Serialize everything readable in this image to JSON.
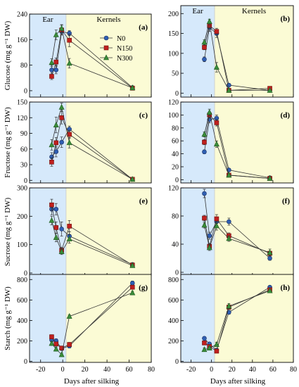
{
  "figure": {
    "xlabel_left": "Days after silking",
    "xlabel_right": "Days after silking",
    "region_labels": [
      "Ear",
      "Kernels"
    ],
    "colors": {
      "ear_bg": "#d6e9fb",
      "kernel_bg": "#fbfbd5",
      "N0": "#2f5fb3",
      "N150": "#c0201e",
      "N300": "#3a8c3a"
    }
  },
  "chart_data": [
    {
      "type": "line",
      "panel": "(a)",
      "ylabel": "Glucose (mg g⁻¹ DW)",
      "ylim": [
        -20,
        240
      ],
      "yticks": [
        0,
        80,
        160,
        240
      ],
      "xlim": [
        -30,
        80
      ],
      "xticks": [],
      "legend": {
        "placement": "top-right",
        "entries": [
          "N0",
          "N150",
          "N300"
        ]
      },
      "series": [
        {
          "name": "N0",
          "x": [
            -10,
            -6,
            -1,
            6,
            63
          ],
          "y": [
            65,
            65,
            185,
            180,
            10
          ],
          "err": [
            15,
            12,
            10,
            8,
            2
          ]
        },
        {
          "name": "N150",
          "x": [
            -10,
            -6,
            -1,
            6,
            63
          ],
          "y": [
            45,
            90,
            190,
            158,
            8
          ],
          "err": [
            10,
            12,
            15,
            20,
            2
          ]
        },
        {
          "name": "N300",
          "x": [
            -10,
            -6,
            -1,
            6,
            63
          ],
          "y": [
            88,
            175,
            195,
            86,
            9
          ],
          "err": [
            12,
            15,
            12,
            15,
            2
          ]
        }
      ]
    },
    {
      "type": "line",
      "panel": "(b)",
      "ylabel": "",
      "ylim": [
        -10,
        220
      ],
      "yticks": [
        0,
        50,
        100,
        150,
        200
      ],
      "xlim": [
        -30,
        80
      ],
      "xticks": [],
      "series": [
        {
          "name": "N0",
          "x": [
            -7,
            -2,
            5,
            17,
            57
          ],
          "y": [
            85,
            165,
            150,
            20,
            7
          ],
          "err": [
            6,
            10,
            10,
            2,
            2
          ]
        },
        {
          "name": "N150",
          "x": [
            -7,
            -2,
            5,
            17,
            57
          ],
          "y": [
            115,
            170,
            155,
            7,
            12
          ],
          "err": [
            6,
            8,
            8,
            2,
            2
          ]
        },
        {
          "name": "N300",
          "x": [
            -7,
            -2,
            5,
            17,
            57
          ],
          "y": [
            128,
            180,
            65,
            7,
            7
          ],
          "err": [
            6,
            6,
            12,
            2,
            2
          ]
        }
      ]
    },
    {
      "type": "line",
      "panel": "(c)",
      "ylabel": "Fructose (mg g⁻¹ DW)",
      "ylim": [
        -5,
        150
      ],
      "yticks": [
        0,
        30,
        60,
        90,
        120,
        150
      ],
      "xlim": [
        -30,
        80
      ],
      "xticks": [],
      "series": [
        {
          "name": "N0",
          "x": [
            -10,
            -6,
            -1,
            6,
            63
          ],
          "y": [
            45,
            55,
            73,
            98,
            2
          ],
          "err": [
            8,
            10,
            10,
            6,
            1
          ]
        },
        {
          "name": "N150",
          "x": [
            -10,
            -6,
            -1,
            6,
            63
          ],
          "y": [
            35,
            72,
            120,
            88,
            2
          ],
          "err": [
            8,
            10,
            12,
            8,
            1
          ]
        },
        {
          "name": "N300",
          "x": [
            -10,
            -6,
            -1,
            6,
            63
          ],
          "y": [
            68,
            106,
            140,
            72,
            2
          ],
          "err": [
            10,
            15,
            8,
            10,
            1
          ]
        }
      ]
    },
    {
      "type": "line",
      "panel": "(d)",
      "ylabel": "",
      "ylim": [
        -5,
        120
      ],
      "yticks": [
        0,
        20,
        40,
        60,
        80,
        100,
        120
      ],
      "xlim": [
        -30,
        80
      ],
      "xticks": [],
      "series": [
        {
          "name": "N0",
          "x": [
            -7,
            -2,
            5,
            17,
            57
          ],
          "y": [
            43,
            93,
            95,
            15,
            3
          ],
          "err": [
            3,
            5,
            5,
            2,
            1
          ]
        },
        {
          "name": "N150",
          "x": [
            -7,
            -2,
            5,
            17,
            57
          ],
          "y": [
            58,
            100,
            88,
            7,
            2
          ],
          "err": [
            4,
            5,
            5,
            2,
            1
          ]
        },
        {
          "name": "N300",
          "x": [
            -7,
            -2,
            5,
            17,
            57
          ],
          "y": [
            70,
            104,
            55,
            7,
            2
          ],
          "err": [
            4,
            5,
            5,
            2,
            1
          ]
        }
      ]
    },
    {
      "type": "line",
      "panel": "(e)",
      "ylabel": "Sucrose (mg g⁻¹ DW)",
      "ylim": [
        -10,
        300
      ],
      "yticks": [
        0,
        100,
        200,
        300
      ],
      "xlim": [
        -30,
        80
      ],
      "xticks": [],
      "series": [
        {
          "name": "N0",
          "x": [
            -10,
            -6,
            -1,
            6,
            63
          ],
          "y": [
            225,
            225,
            155,
            130,
            30
          ],
          "err": [
            20,
            20,
            25,
            15,
            5
          ]
        },
        {
          "name": "N150",
          "x": [
            -10,
            -6,
            -1,
            6,
            63
          ],
          "y": [
            240,
            160,
            80,
            165,
            28
          ],
          "err": [
            20,
            20,
            10,
            20,
            5
          ]
        },
        {
          "name": "N300",
          "x": [
            -10,
            -6,
            -1,
            6,
            63
          ],
          "y": [
            185,
            125,
            75,
            120,
            26
          ],
          "err": [
            15,
            15,
            10,
            15,
            5
          ]
        }
      ]
    },
    {
      "type": "line",
      "panel": "(f)",
      "ylabel": "",
      "ylim": [
        -5,
        120
      ],
      "yticks": [
        0,
        40,
        80,
        120
      ],
      "xlim": [
        -30,
        80
      ],
      "xticks": [],
      "series": [
        {
          "name": "N0",
          "x": [
            -7,
            -2,
            5,
            17,
            57
          ],
          "y": [
            112,
            52,
            72,
            72,
            20
          ],
          "err": [
            6,
            5,
            6,
            5,
            3
          ]
        },
        {
          "name": "N150",
          "x": [
            -7,
            -2,
            5,
            17,
            57
          ],
          "y": [
            77,
            37,
            76,
            52,
            27
          ],
          "err": [
            4,
            4,
            6,
            4,
            3
          ]
        },
        {
          "name": "N300",
          "x": [
            -7,
            -2,
            5,
            17,
            57
          ],
          "y": [
            67,
            35,
            66,
            48,
            28
          ],
          "err": [
            4,
            4,
            6,
            4,
            5
          ]
        }
      ]
    },
    {
      "type": "line",
      "panel": "(g)",
      "ylabel": "Starch (mg g⁻¹ DW)",
      "ylim": [
        -10,
        850
      ],
      "yticks": [
        0,
        200,
        400,
        600,
        800
      ],
      "xlim": [
        -30,
        80
      ],
      "xticks": [
        -20,
        0,
        20,
        40,
        60,
        80
      ],
      "series": [
        {
          "name": "N0",
          "x": [
            -10,
            -6,
            -1,
            6,
            63
          ],
          "y": [
            210,
            200,
            125,
            150,
            765
          ],
          "err": [
            20,
            20,
            15,
            20,
            20
          ]
        },
        {
          "name": "N150",
          "x": [
            -10,
            -6,
            -1,
            6,
            63
          ],
          "y": [
            240,
            170,
            130,
            165,
            725
          ],
          "err": [
            20,
            20,
            15,
            20,
            20
          ]
        },
        {
          "name": "N300",
          "x": [
            -10,
            -6,
            -1,
            6,
            63
          ],
          "y": [
            175,
            120,
            65,
            440,
            670
          ],
          "err": [
            20,
            20,
            15,
            15,
            15
          ]
        }
      ]
    },
    {
      "type": "line",
      "panel": "(h)",
      "ylabel": "",
      "ylim": [
        -10,
        850
      ],
      "yticks": [
        0,
        200,
        400,
        600,
        800
      ],
      "xlim": [
        -30,
        80
      ],
      "xticks": [
        -20,
        0,
        20,
        40,
        60,
        80
      ],
      "series": [
        {
          "name": "N0",
          "x": [
            -7,
            -2,
            5,
            17,
            57
          ],
          "y": [
            225,
            170,
            110,
            480,
            725
          ],
          "err": [
            15,
            15,
            15,
            20,
            15
          ]
        },
        {
          "name": "N150",
          "x": [
            -7,
            -2,
            5,
            17,
            57
          ],
          "y": [
            180,
            145,
            100,
            530,
            700
          ],
          "err": [
            15,
            15,
            15,
            20,
            15
          ]
        },
        {
          "name": "N300",
          "x": [
            -7,
            -2,
            5,
            17,
            57
          ],
          "y": [
            115,
            130,
            165,
            540,
            690
          ],
          "err": [
            15,
            15,
            20,
            25,
            15
          ]
        }
      ]
    }
  ]
}
